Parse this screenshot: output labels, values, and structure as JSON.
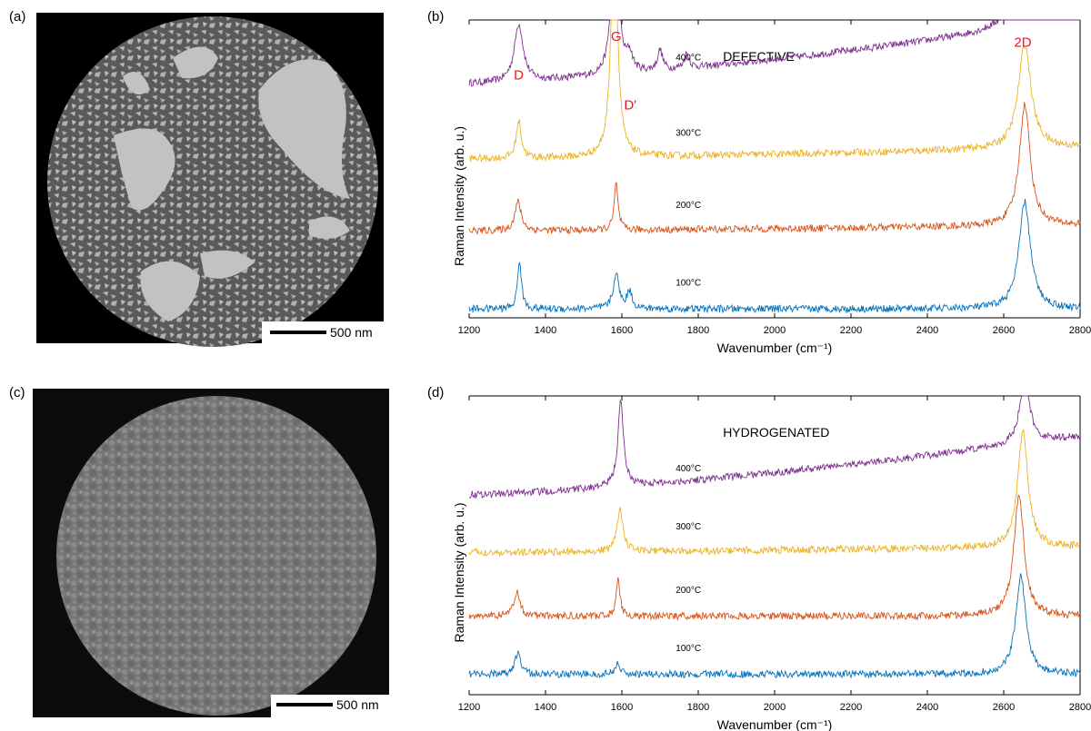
{
  "panels": {
    "a": {
      "label": "(a)",
      "scalebar": "500 nm"
    },
    "b": {
      "label": "(b)"
    },
    "c": {
      "label": "(c)",
      "scalebar": "500 nm"
    },
    "d": {
      "label": "(d)"
    }
  },
  "chart_data": [
    {
      "id": "b",
      "type": "line",
      "title": "DEFECTIVE",
      "xlabel": "Wavenumber (cm⁻¹)",
      "ylabel": "Raman Intensity (arb. u.)",
      "xlim": [
        1200,
        2800
      ],
      "xticks": [
        1200,
        1400,
        1600,
        1800,
        2000,
        2200,
        2400,
        2600,
        2800
      ],
      "peak_labels": [
        {
          "text": "D",
          "x": 1330
        },
        {
          "text": "G",
          "x": 1585
        },
        {
          "text": "D'",
          "x": 1622
        },
        {
          "text": "2D",
          "x": 2650
        }
      ],
      "series": [
        {
          "label": "400°C",
          "color": "#7e2f8e",
          "offset": 0.78,
          "baseline_start": 0.0,
          "baseline_end": 0.22,
          "peaks": [
            [
              1330,
              0.2,
              14
            ],
            [
              1582,
              0.82,
              8
            ],
            [
              1620,
              0.06,
              10
            ],
            [
              1700,
              0.07,
              8
            ],
            [
              1770,
              0.05,
              8
            ],
            [
              2658,
              0.7,
              18
            ]
          ]
        },
        {
          "label": "300°C",
          "color": "#edb120",
          "offset": 0.52,
          "baseline_start": 0.0,
          "baseline_end": 0.04,
          "peaks": [
            [
              1330,
              0.13,
              8
            ],
            [
              1580,
              0.93,
              9
            ],
            [
              2655,
              0.36,
              20
            ]
          ]
        },
        {
          "label": "200°C",
          "color": "#d95319",
          "offset": 0.27,
          "baseline_start": 0.0,
          "baseline_end": 0.02,
          "peaks": [
            [
              1328,
              0.1,
              10
            ],
            [
              1585,
              0.16,
              6
            ],
            [
              2655,
              0.42,
              17
            ]
          ]
        },
        {
          "label": "100°C",
          "color": "#0072bd",
          "offset": 0.0,
          "baseline_start": 0.0,
          "baseline_end": 0.0,
          "peaks": [
            [
              1332,
              0.17,
              6
            ],
            [
              1585,
              0.12,
              9
            ],
            [
              1620,
              0.06,
              8
            ],
            [
              2655,
              0.37,
              18
            ]
          ]
        }
      ]
    },
    {
      "id": "d",
      "type": "line",
      "title": "HYDROGENATED",
      "xlabel": "Wavenumber (cm⁻¹)",
      "ylabel": "Raman Intensity (arb. u.)",
      "xlim": [
        1200,
        2800
      ],
      "xticks": [
        1200,
        1400,
        1600,
        1800,
        2000,
        2200,
        2400,
        2600,
        2800
      ],
      "peak_labels": [],
      "series": [
        {
          "label": "400°C",
          "color": "#7e2f8e",
          "offset": 0.66,
          "baseline_start": 0.0,
          "baseline_end": 0.2,
          "peaks": [
            [
              1597,
              0.29,
              9
            ],
            [
              2655,
              0.22,
              16
            ]
          ]
        },
        {
          "label": "300°C",
          "color": "#edb120",
          "offset": 0.46,
          "baseline_start": 0.0,
          "baseline_end": 0.02,
          "peaks": [
            [
              1595,
              0.15,
              9
            ],
            [
              2650,
              0.4,
              16
            ]
          ]
        },
        {
          "label": "200°C",
          "color": "#d95319",
          "offset": 0.24,
          "baseline_start": 0.0,
          "baseline_end": 0.0,
          "peaks": [
            [
              1325,
              0.08,
              10
            ],
            [
              1590,
              0.13,
              6
            ],
            [
              2640,
              0.42,
              16
            ]
          ]
        },
        {
          "label": "100°C",
          "color": "#0072bd",
          "offset": 0.04,
          "baseline_start": 0.0,
          "baseline_end": 0.0,
          "peaks": [
            [
              1328,
              0.08,
              8
            ],
            [
              1588,
              0.04,
              7
            ],
            [
              2645,
              0.34,
              16
            ]
          ]
        }
      ]
    }
  ]
}
